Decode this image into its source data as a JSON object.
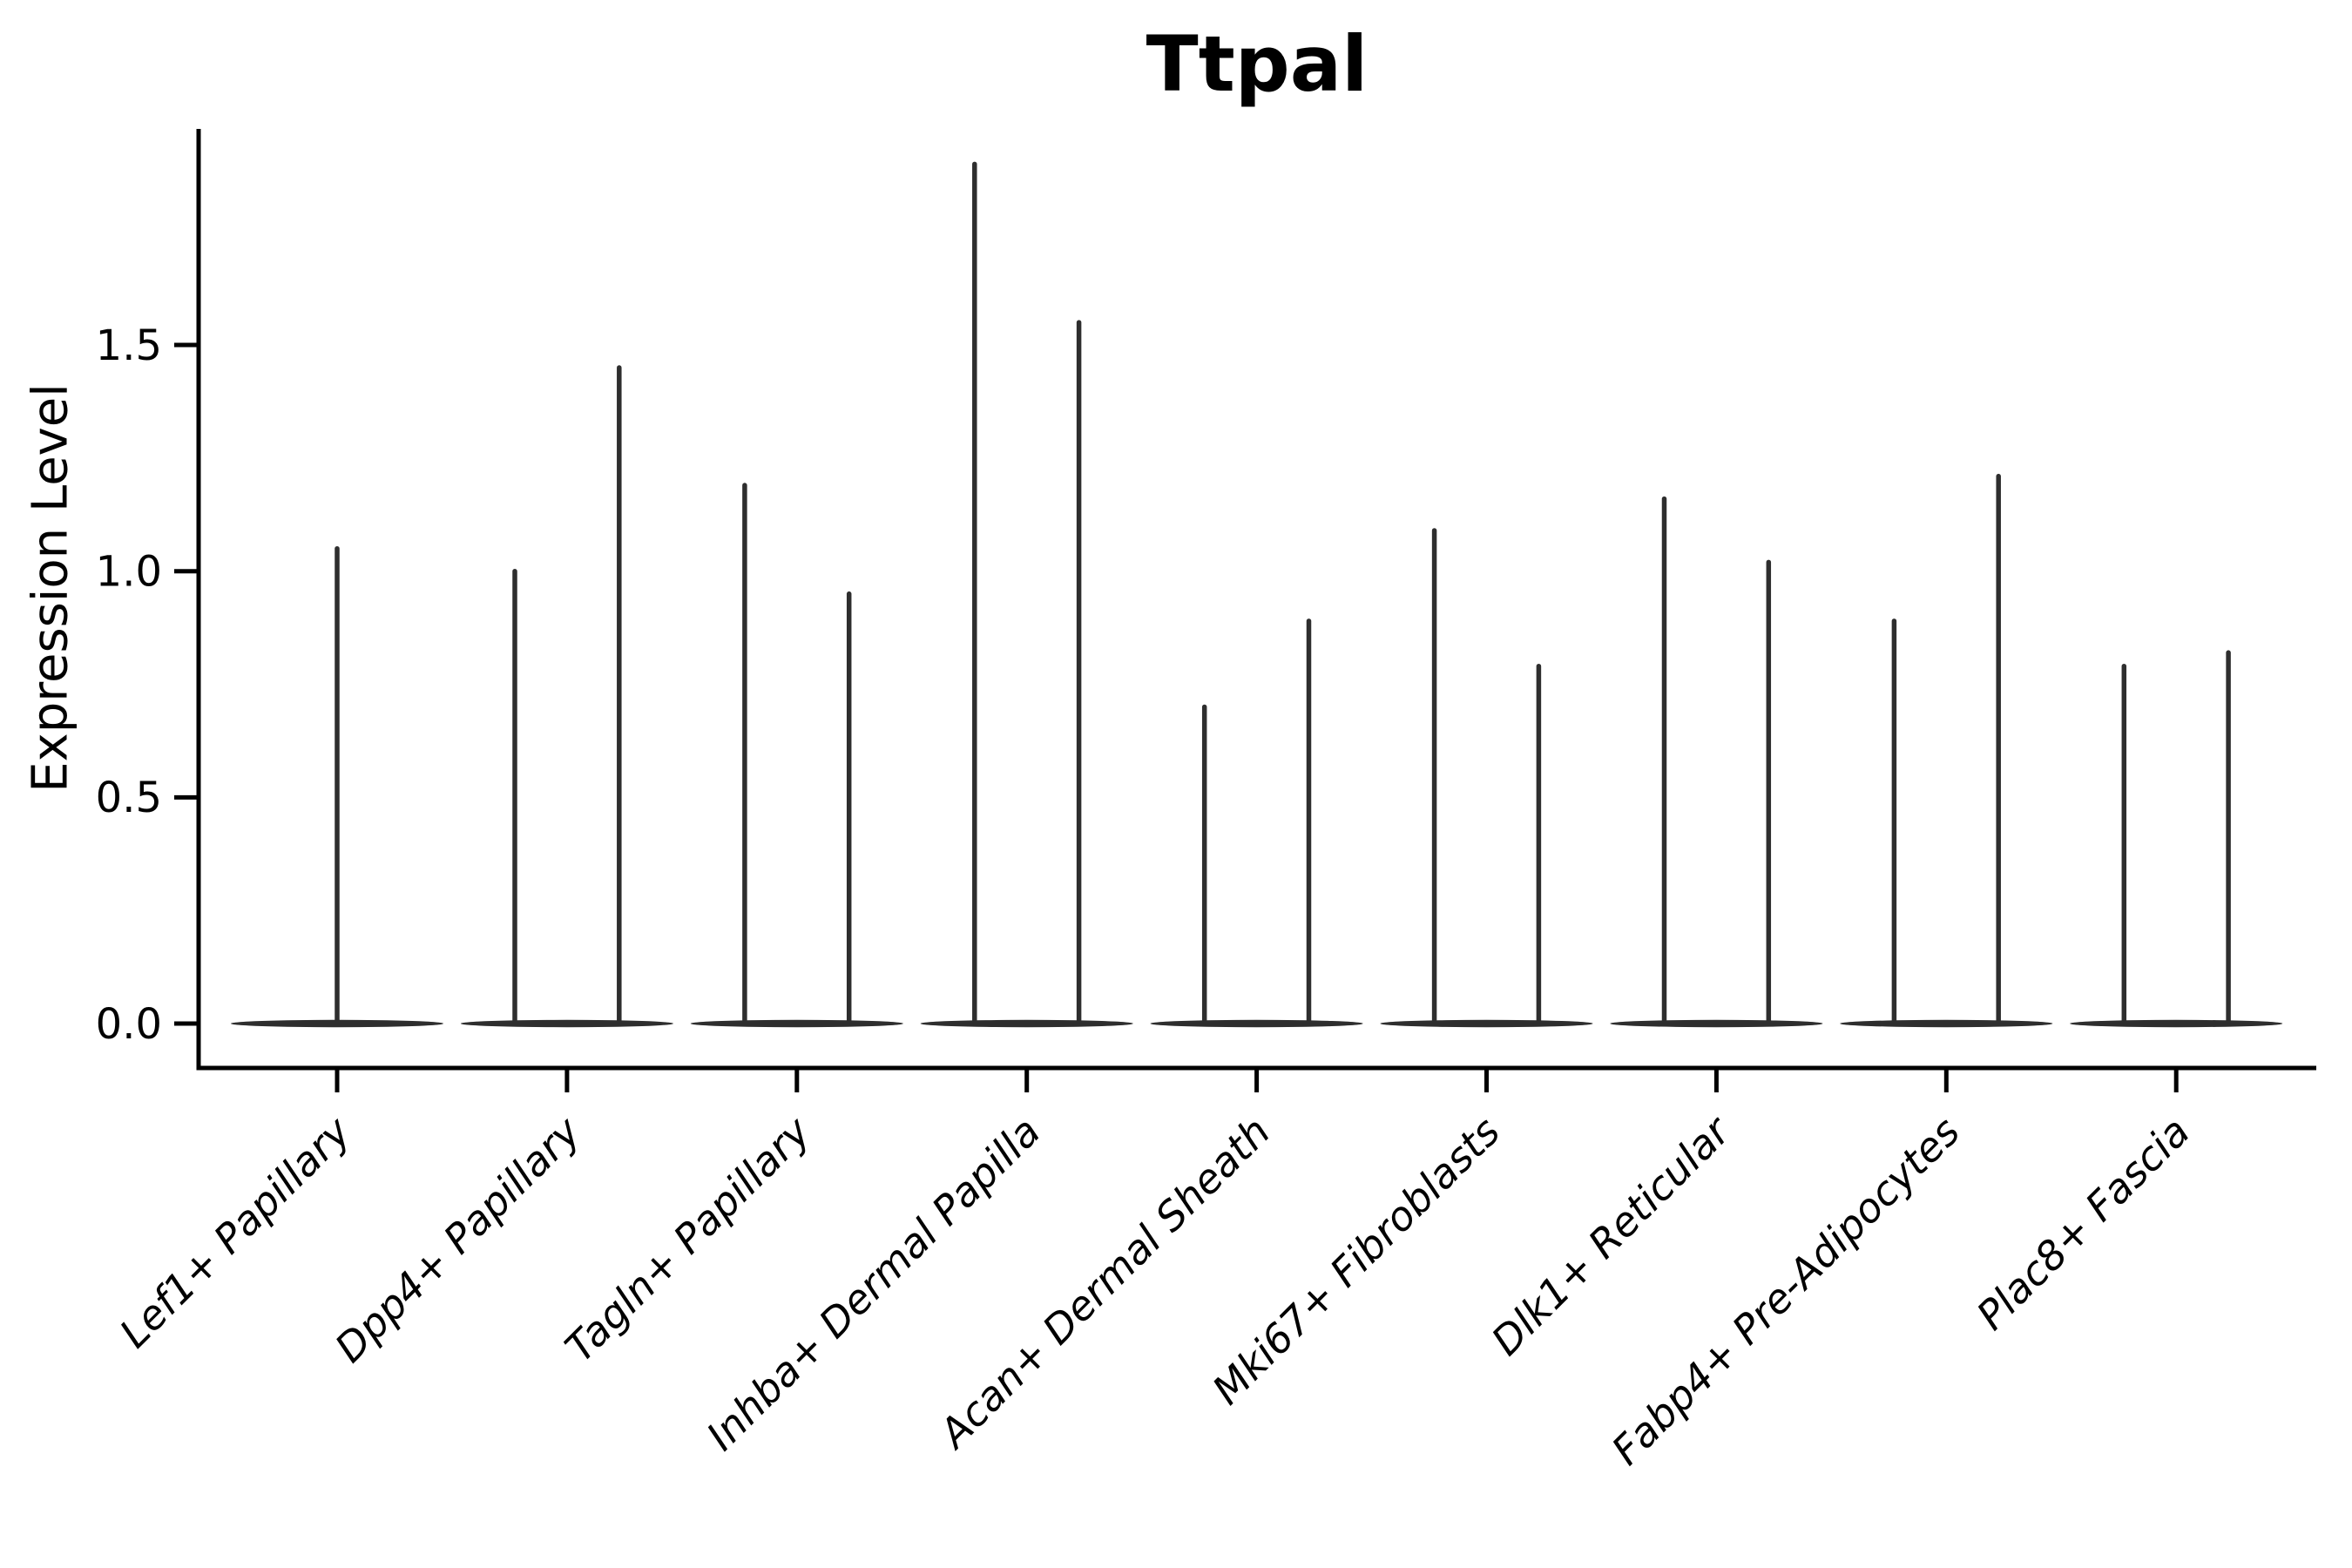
{
  "title": "Ttpal",
  "axes": {
    "y_label": "Expression Level",
    "x_label": "",
    "y_ticks": [
      "0.0",
      "0.5",
      "1.0",
      "1.5"
    ],
    "y_tick_values": [
      0.0,
      0.5,
      1.0,
      1.5
    ]
  },
  "chart_data": {
    "type": "violin",
    "title": "Ttpal",
    "ylabel": "Expression Level",
    "xlabel": "",
    "ylim": [
      -0.1,
      1.98
    ],
    "grid": false,
    "legend": "none",
    "categories": [
      "Lef1+ Papillary",
      "Dpp4+ Papillary",
      "Tagln+ Papillary",
      "Inhba+ Dermal Papilla",
      "Acan+ Dermal Sheath",
      "Mki67+ Fibroblasts",
      "Dlk1+ Reticular",
      "Fabp4+ Pre-Adipocytes",
      "Plac8+ Fascia"
    ],
    "description": "Each violin collapses to a flat bar at 0 expression with thin spikes up to the maximum expression value; first category has one centered violin, the rest have two side-by-side violins",
    "baseline_value": 0.0,
    "violins": [
      {
        "category": "Lef1+ Papillary",
        "spikes": [
          {
            "offset_frac": 0.0,
            "max": 1.05
          }
        ]
      },
      {
        "category": "Dpp4+ Papillary",
        "spikes": [
          {
            "offset_frac": -0.227,
            "max": 1.0
          },
          {
            "offset_frac": 0.227,
            "max": 1.45
          }
        ]
      },
      {
        "category": "Tagln+ Papillary",
        "spikes": [
          {
            "offset_frac": -0.227,
            "max": 1.19
          },
          {
            "offset_frac": 0.227,
            "max": 0.95
          }
        ]
      },
      {
        "category": "Inhba+ Dermal Papilla",
        "spikes": [
          {
            "offset_frac": -0.227,
            "max": 1.9
          },
          {
            "offset_frac": 0.227,
            "max": 1.55
          }
        ]
      },
      {
        "category": "Acan+ Dermal Sheath",
        "spikes": [
          {
            "offset_frac": -0.227,
            "max": 0.7
          },
          {
            "offset_frac": 0.227,
            "max": 0.89
          }
        ]
      },
      {
        "category": "Mki67+ Fibroblasts",
        "spikes": [
          {
            "offset_frac": -0.227,
            "max": 1.09
          },
          {
            "offset_frac": 0.227,
            "max": 0.79
          }
        ]
      },
      {
        "category": "Dlk1+ Reticular",
        "spikes": [
          {
            "offset_frac": -0.227,
            "max": 1.16
          },
          {
            "offset_frac": 0.227,
            "max": 1.02
          }
        ]
      },
      {
        "category": "Fabp4+ Pre-Adipocytes",
        "spikes": [
          {
            "offset_frac": -0.227,
            "max": 0.89
          },
          {
            "offset_frac": 0.227,
            "max": 1.21
          }
        ]
      },
      {
        "category": "Plac8+ Fascia",
        "spikes": [
          {
            "offset_frac": -0.227,
            "max": 0.79
          },
          {
            "offset_frac": 0.227,
            "max": 0.82
          }
        ]
      }
    ],
    "colors": {
      "violin": "#2e2e2e",
      "axis": "#000000",
      "text": "#000000",
      "background": "#ffffff"
    }
  }
}
